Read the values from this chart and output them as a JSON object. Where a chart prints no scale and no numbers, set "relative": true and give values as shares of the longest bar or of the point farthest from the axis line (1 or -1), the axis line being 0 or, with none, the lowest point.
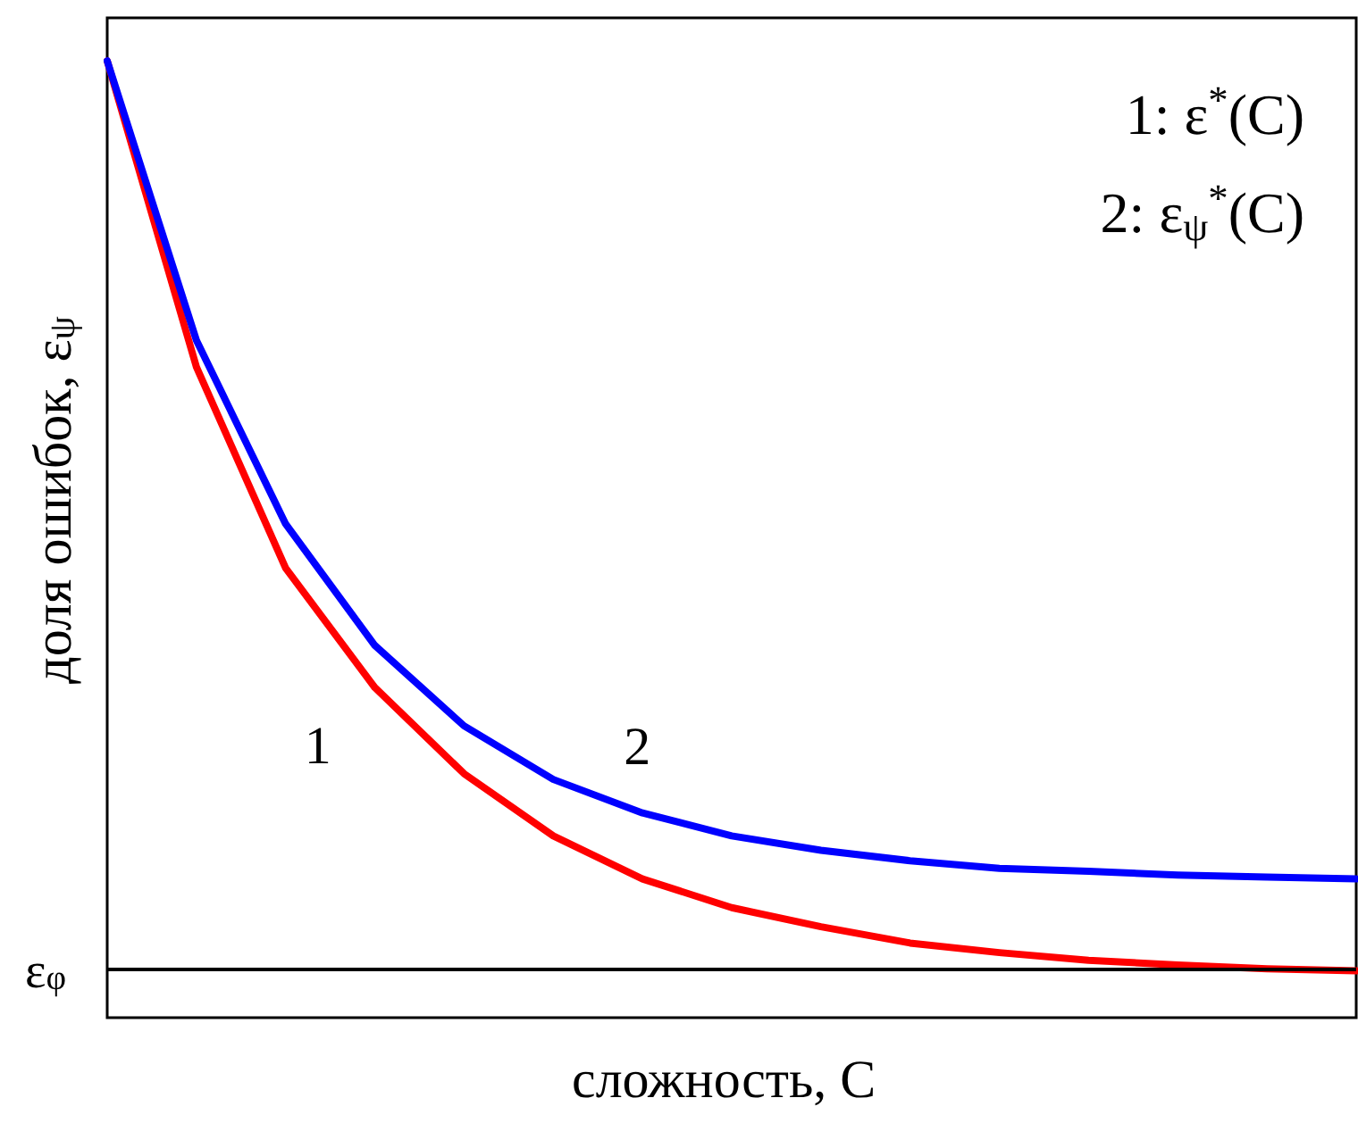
{
  "chart_data": {
    "type": "line",
    "relative": true,
    "xlabel": "сложность, C",
    "ylabel": "доля ошибок, ε$_{ψ}$",
    "categories": [
      null,
      null,
      null,
      null,
      null,
      null,
      null,
      null,
      null,
      null,
      null,
      null,
      null,
      null,
      null
    ],
    "series": [
      {
        "name": "1",
        "color": "#ff0000",
        "values": [
          1.0,
          0.68,
          0.47,
          0.345,
          0.255,
          0.19,
          0.145,
          0.115,
          0.095,
          0.078,
          0.068,
          0.06,
          0.055,
          0.051,
          0.049
        ]
      },
      {
        "name": "2",
        "color": "#0000ff",
        "values": [
          1.0,
          0.708,
          0.516,
          0.389,
          0.305,
          0.249,
          0.214,
          0.19,
          0.175,
          0.164,
          0.156,
          0.153,
          0.149,
          0.147,
          0.145
        ]
      }
    ],
    "ref_lines": [
      {
        "axis": "y",
        "value": 0.048,
        "label": "ε$_{φ}$",
        "color": "#000000"
      }
    ],
    "annotations": [
      "1: ε$^{*}$(C)",
      "2: ε$_{ψ}$$^{*}$(C)"
    ],
    "legend": false,
    "grid": false,
    "tick_labels": false,
    "marker": "none",
    "line_style": "solid"
  }
}
